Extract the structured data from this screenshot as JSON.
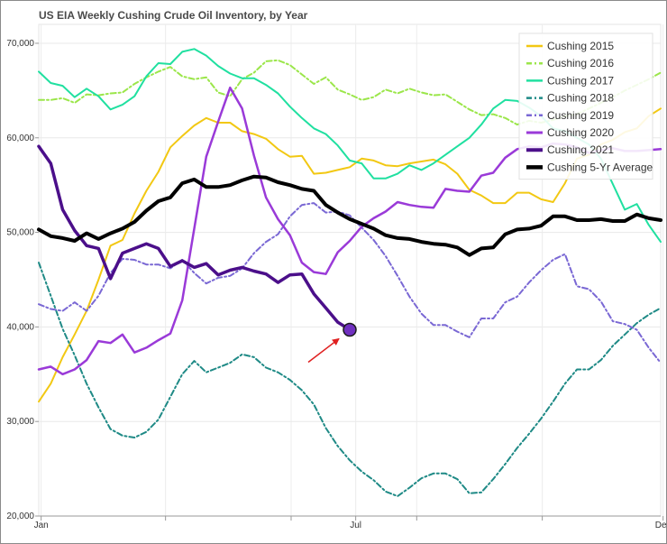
{
  "chart_data": {
    "type": "line",
    "title": "US EIA Weekly Cushing Crude Oil Inventory, by Year",
    "xlabel": "",
    "ylabel": "",
    "x_domain_weeks": [
      0,
      52
    ],
    "ylim": [
      20000,
      72000
    ],
    "y_ticks": [
      20000,
      30000,
      40000,
      50000,
      60000,
      70000
    ],
    "y_tick_labels": [
      "20,000",
      "30,000",
      "40,000",
      "50,000",
      "60,000",
      "70,000"
    ],
    "x_ticks": [
      {
        "week": 0.2,
        "label": "Jan"
      },
      {
        "week": 10.6,
        "label": ""
      },
      {
        "week": 21.1,
        "label": ""
      },
      {
        "week": 26.5,
        "label": "Jul"
      },
      {
        "week": 31.6,
        "label": ""
      },
      {
        "week": 42.1,
        "label": ""
      },
      {
        "week": 52.2,
        "label": "Dec"
      }
    ],
    "legend_position": "top-right",
    "series": [
      {
        "name": "Cushing 2015",
        "color": "#f2c813",
        "style": "solid",
        "width": 2,
        "values": [
          32100,
          34000,
          36800,
          39200,
          41700,
          45000,
          48600,
          49200,
          52000,
          54400,
          56400,
          59000,
          60200,
          61300,
          62100,
          61600,
          61600,
          60700,
          60400,
          59900,
          58800,
          58000,
          58100,
          56200,
          56300,
          56600,
          56900,
          57800,
          57600,
          57100,
          57000,
          57300,
          57500,
          57700,
          57200,
          56200,
          54500,
          53900,
          53100,
          53100,
          54200,
          54200,
          53500,
          53200,
          55200,
          57800,
          58200,
          59300,
          59800,
          60600,
          61000,
          62300,
          63100
        ]
      },
      {
        "name": "Cushing 2016",
        "color": "#9be64a",
        "style": "dashdot",
        "width": 2,
        "values": [
          64000,
          64000,
          64200,
          63700,
          64600,
          64500,
          64700,
          64800,
          65700,
          66400,
          67000,
          67500,
          66500,
          66200,
          66400,
          64800,
          64400,
          66200,
          66900,
          68100,
          68200,
          67700,
          66700,
          65700,
          66400,
          65100,
          64600,
          64000,
          64300,
          65100,
          64700,
          65200,
          64800,
          64500,
          64600,
          63800,
          63000,
          62400,
          62500,
          62100,
          61400,
          61800,
          61600,
          61900,
          62300,
          62500,
          63100,
          63700,
          64300,
          65000,
          65600,
          66200,
          66900
        ]
      },
      {
        "name": "Cushing 2017",
        "color": "#20e0a0",
        "style": "solid",
        "width": 2,
        "values": [
          67000,
          65800,
          65500,
          64300,
          65200,
          64400,
          63000,
          63500,
          64400,
          66500,
          67900,
          67800,
          69100,
          69400,
          68700,
          67600,
          66800,
          66300,
          66300,
          65600,
          64700,
          63300,
          62100,
          61000,
          60400,
          59200,
          57600,
          57300,
          55700,
          55700,
          56200,
          57100,
          56600,
          57300,
          58200,
          59100,
          60000,
          61400,
          63100,
          64000,
          63900,
          63200,
          62300,
          61000,
          60700,
          60000,
          59300,
          57800,
          55100,
          52400,
          53000,
          50800,
          49000
        ]
      },
      {
        "name": "Cushing 2018",
        "color": "#1f8a86",
        "style": "dashdot",
        "width": 2,
        "values": [
          46800,
          43300,
          39800,
          37000,
          34000,
          31500,
          29200,
          28500,
          28300,
          28900,
          30200,
          32600,
          35000,
          36400,
          35200,
          35700,
          36200,
          37100,
          36800,
          35700,
          35200,
          34400,
          33300,
          31800,
          29300,
          27400,
          25900,
          24700,
          23800,
          22600,
          22100,
          23000,
          24000,
          24500,
          24500,
          23900,
          22400,
          22500,
          23900,
          25500,
          27200,
          28700,
          30300,
          32100,
          34000,
          35500,
          35500,
          36500,
          38000,
          39200,
          40400,
          41300,
          42000
        ]
      },
      {
        "name": "Cushing 2019",
        "color": "#7a68d4",
        "style": "dashdot",
        "width": 2,
        "values": [
          42400,
          41900,
          41700,
          42600,
          41700,
          43300,
          45700,
          47200,
          47100,
          46600,
          46600,
          46200,
          47100,
          45700,
          44600,
          45200,
          45400,
          46200,
          47800,
          49000,
          49800,
          51700,
          52900,
          53100,
          52100,
          52200,
          51800,
          50500,
          49200,
          47500,
          45400,
          43200,
          41400,
          40200,
          40200,
          39500,
          38900,
          40900,
          40900,
          42600,
          43200,
          44700,
          46000,
          47100,
          47700,
          44300,
          44000,
          42700,
          40600,
          40300,
          39700,
          37800,
          36200
        ]
      },
      {
        "name": "Cushing 2020",
        "color": "#9a3ad8",
        "style": "solid",
        "width": 2.5,
        "values": [
          35500,
          35800,
          35000,
          35500,
          36500,
          38500,
          38300,
          39200,
          37300,
          37800,
          38600,
          39300,
          42800,
          50400,
          58000,
          61700,
          65300,
          63100,
          58100,
          53700,
          51400,
          49700,
          46800,
          45800,
          45600,
          47900,
          49100,
          50600,
          51500,
          52200,
          53200,
          52900,
          52700,
          52600,
          54600,
          54400,
          54300,
          56000,
          56300,
          57900,
          58800,
          59100,
          59000,
          59400,
          59300,
          59000,
          58400,
          58700,
          58900,
          58600,
          58600,
          58700,
          58800
        ]
      },
      {
        "name": "Cushing 2021",
        "color": "#4b0f8a",
        "style": "solid",
        "width": 3.5,
        "values": [
          59100,
          57300,
          52400,
          50200,
          48600,
          48300,
          45100,
          47800,
          48300,
          48800,
          48300,
          46400,
          47000,
          46300,
          46700,
          45500,
          46000,
          46300,
          45900,
          45600,
          44700,
          45500,
          45600,
          43500,
          42000,
          40500,
          39700
        ]
      },
      {
        "name": "Cushing 5-Yr Average",
        "color": "#000000",
        "style": "solid",
        "width": 4,
        "values": [
          50300,
          49600,
          49400,
          49100,
          49900,
          49300,
          49900,
          50400,
          51100,
          52300,
          53300,
          53700,
          55200,
          55600,
          54800,
          54800,
          55000,
          55500,
          55900,
          55800,
          55300,
          55000,
          54600,
          54400,
          52900,
          52100,
          51400,
          50900,
          50400,
          49700,
          49400,
          49300,
          49000,
          48800,
          48700,
          48400,
          47600,
          48300,
          48400,
          49800,
          50300,
          50400,
          50700,
          51700,
          51700,
          51300,
          51300,
          51400,
          51200,
          51200,
          51900,
          51500,
          51300
        ]
      }
    ],
    "annotations": [
      {
        "type": "marker",
        "series": "Cushing 2021",
        "week": 26,
        "value": 39700,
        "color": "#7030c0"
      },
      {
        "type": "arrow",
        "color": "#e02020",
        "points_to": "Cushing 2021 latest value"
      }
    ]
  }
}
